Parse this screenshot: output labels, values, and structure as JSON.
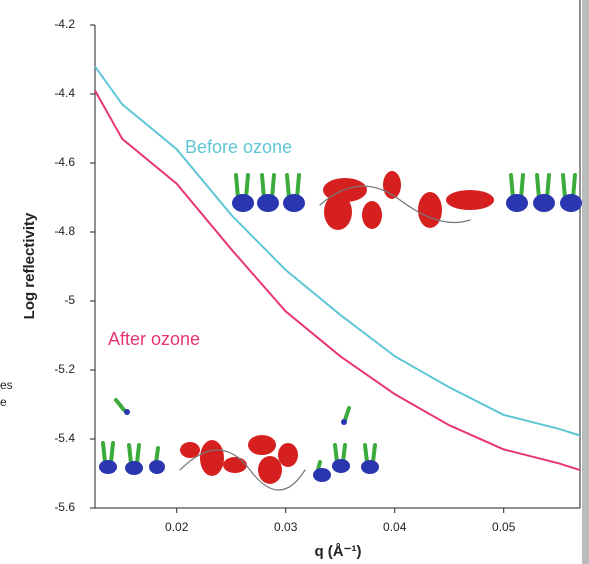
{
  "chart_data": {
    "type": "line",
    "x": [
      0.0125,
      0.015,
      0.02,
      0.025,
      0.03,
      0.035,
      0.04,
      0.045,
      0.05,
      0.055,
      0.057
    ],
    "series": [
      {
        "name": "Before ozone",
        "color": "#5ec6d6",
        "values": [
          -4.32,
          -4.43,
          -4.56,
          -4.75,
          -4.91,
          -5.04,
          -5.16,
          -5.25,
          -5.33,
          -5.37,
          -5.39
        ]
      },
      {
        "name": "After ozone",
        "color": "#e83670",
        "values": [
          -4.39,
          -4.53,
          -4.66,
          -4.85,
          -5.03,
          -5.16,
          -5.27,
          -5.36,
          -5.43,
          -5.47,
          -5.49
        ]
      }
    ],
    "xlabel": "q (Å⁻¹)",
    "ylabel": "Log reflectivity",
    "xlim": [
      0.0125,
      0.057
    ],
    "ylim": [
      -5.6,
      -4.2
    ],
    "xticks": [
      0.02,
      0.03,
      0.04,
      0.05
    ],
    "yticks": [
      -4.2,
      -4.4,
      -4.6,
      -4.8,
      -5.0,
      -5.2,
      -5.4,
      -5.6
    ],
    "annotations": [
      "es",
      "e"
    ]
  }
}
